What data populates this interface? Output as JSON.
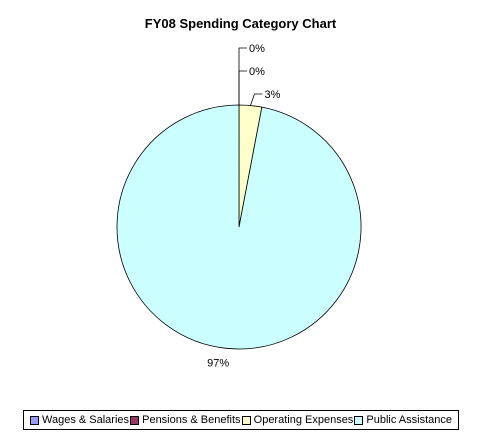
{
  "chart_data": {
    "type": "pie",
    "title": "FY08 Spending Category Chart",
    "categories": [
      "Wages & Salaries",
      "Pensions & Benefits",
      "Operating Expenses",
      "Public Assistance"
    ],
    "values": [
      0,
      0,
      3,
      97
    ],
    "labels": [
      "0%",
      "0%",
      "3%",
      "97%"
    ],
    "colors": [
      "#9999ff",
      "#993366",
      "#ffffcc",
      "#ccffff"
    ],
    "legend": "bottom"
  }
}
